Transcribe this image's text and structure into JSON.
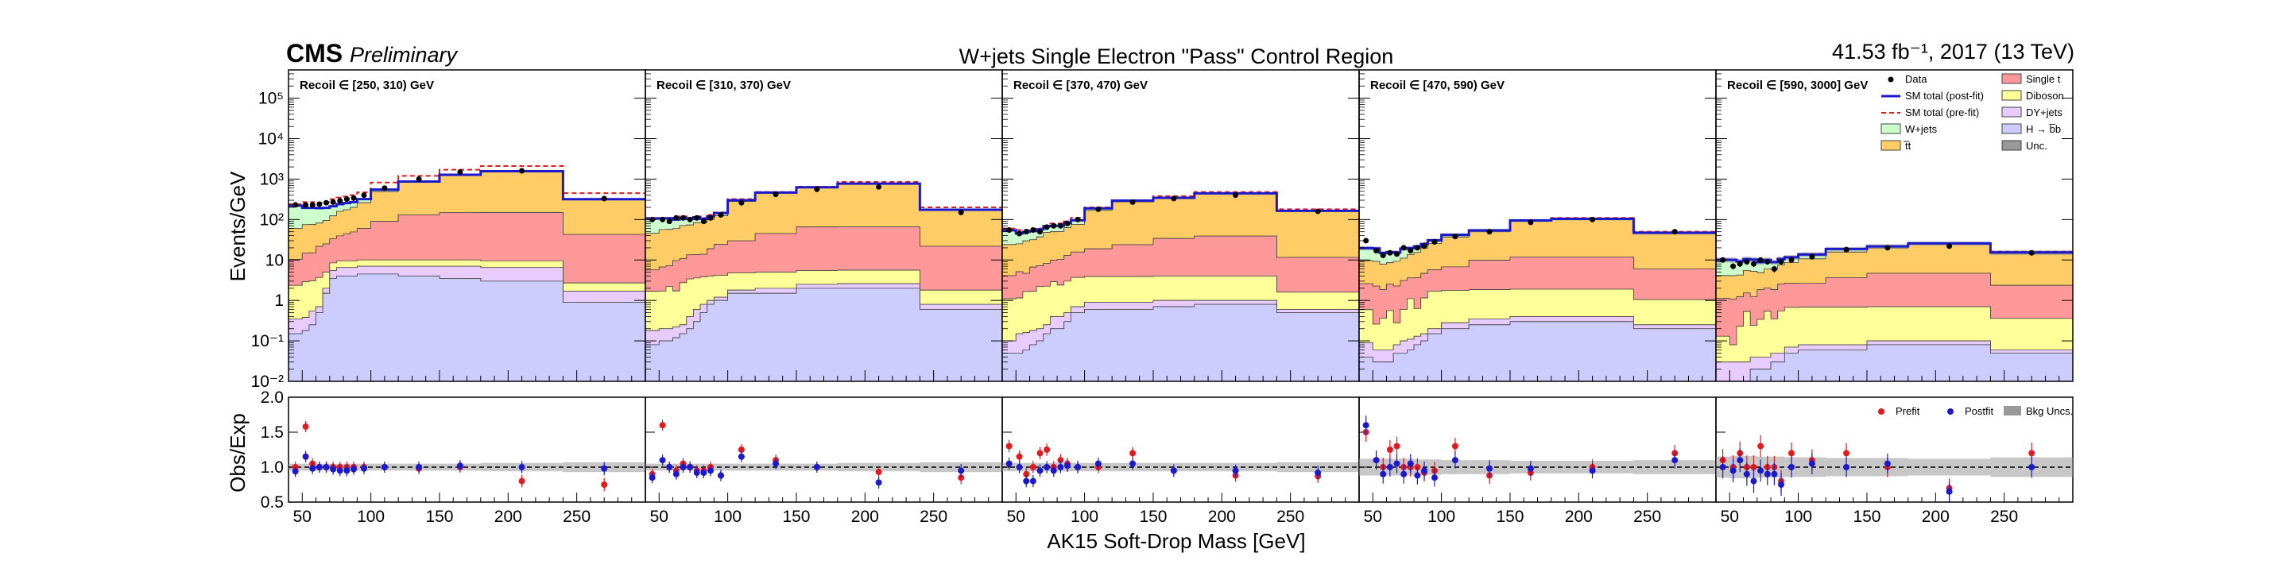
{
  "header": {
    "cms": "CMS",
    "preliminary": "Preliminary",
    "title": "W+jets Single Electron \"Pass\" Control Region",
    "lumi": "41.53 fb⁻¹, 2017 (13 TeV)"
  },
  "chart_data": {
    "type": "stacked-histogram",
    "xlabel": "AK15 Soft-Drop Mass [GeV]",
    "ylabel": "Events/GeV",
    "ratio_ylabel": "Obs/Exp",
    "xlim": [
      40,
      300
    ],
    "ylim": [
      0.01,
      500000
    ],
    "ylog": true,
    "ratio_ylim": [
      0.5,
      2.0
    ],
    "x_ticks": [
      50,
      100,
      150,
      200,
      250
    ],
    "y_tick_labels": [
      "10⁻²",
      "10⁻¹",
      "1",
      "10",
      "10²",
      "10³",
      "10⁴",
      "10⁵"
    ],
    "ratio_tick_labels": [
      "0.5",
      "1.0",
      "1.5",
      "2.0"
    ],
    "bin_edges": [
      40,
      50,
      55,
      60,
      65,
      70,
      75,
      80,
      85,
      90,
      100,
      120,
      150,
      180,
      240,
      300
    ],
    "processes": [
      "H → b̅b",
      "DY+jets",
      "Diboson",
      "Single t",
      "t̅t",
      "W+jets"
    ],
    "process_colors": [
      "#ccccff",
      "#e8ccff",
      "#ffff99",
      "#ff9999",
      "#ffcc66",
      "#ccffcc"
    ],
    "legend": {
      "data": "Data",
      "post_fit": "SM total (post-fit)",
      "pre_fit": "SM total (pre-fit)",
      "wjets": "W+jets",
      "ttbar": "t̅t",
      "singlet": "Single t",
      "diboson": "Diboson",
      "dyjets": "DY+jets",
      "hbb": "H → b̅b",
      "unc": "Unc."
    },
    "ratio_legend": {
      "prefit": "Prefit",
      "postfit": "Postfit",
      "bkg_unc": "Bkg Uncs."
    },
    "panels": [
      {
        "label": "Recoil ∈ [250, 310) GeV",
        "stack": [
          [
            0.15,
            0.18,
            0.25,
            0.5,
            1.5,
            3.5,
            4.0,
            4.0,
            4.0,
            4.5,
            4.5,
            4.0,
            3.5,
            3.0,
            0.9
          ],
          [
            0.2,
            0.2,
            0.3,
            0.2,
            0.5,
            2.0,
            2.5,
            2.5,
            2.5,
            2.5,
            2.5,
            3.0,
            3.5,
            3.5,
            0.8
          ],
          [
            2.0,
            2.5,
            2.5,
            3.0,
            3.0,
            3.0,
            3.0,
            3.0,
            3.0,
            3.0,
            3.0,
            3.0,
            3.0,
            3.0,
            1.0
          ],
          [
            8,
            12,
            12,
            18,
            20,
            25,
            30,
            35,
            40,
            50,
            80,
            120,
            140,
            140,
            40
          ],
          [
            50,
            60,
            60,
            60,
            70,
            90,
            120,
            130,
            150,
            200,
            400,
            700,
            1100,
            1400,
            270
          ],
          [
            160,
            120,
            120,
            110,
            100,
            90,
            80,
            80,
            70,
            60,
            60,
            40,
            30,
            20,
            6
          ]
        ],
        "prefit_total": [
          240,
          270,
          270,
          260,
          270,
          320,
          350,
          370,
          400,
          470,
          820,
          1200,
          1700,
          2100,
          450
        ],
        "data": [
          230,
          230,
          230,
          240,
          260,
          270,
          290,
          320,
          340,
          400,
          600,
          1000,
          1500,
          1600,
          330
        ],
        "ratio_prefit": [
          1.0,
          1.58,
          1.05,
          1.0,
          1.0,
          1.0,
          1.0,
          1.0,
          1.0,
          1.0,
          1.0,
          0.98,
          1.0,
          0.8,
          0.75
        ],
        "ratio_postfit": [
          0.94,
          1.15,
          0.98,
          1.0,
          1.0,
          0.97,
          0.95,
          0.95,
          0.97,
          0.98,
          1.0,
          1.0,
          1.02,
          1.0,
          0.98
        ],
        "unc": [
          0.05,
          0.05,
          0.05,
          0.05,
          0.05,
          0.05,
          0.05,
          0.05,
          0.05,
          0.05,
          0.05,
          0.05,
          0.05,
          0.06,
          0.07
        ]
      },
      {
        "label": "Recoil ∈ [310, 370) GeV",
        "stack": [
          [
            0.08,
            0.1,
            0.1,
            0.12,
            0.15,
            0.2,
            0.3,
            0.5,
            0.8,
            1.0,
            1.5,
            1.5,
            2.0,
            2.0,
            0.6
          ],
          [
            0.1,
            0.1,
            0.1,
            0.1,
            0.1,
            0.2,
            0.3,
            0.3,
            0.2,
            0.2,
            0.3,
            0.5,
            0.5,
            0.6,
            0.2
          ],
          [
            1.5,
            1.5,
            2.0,
            1.5,
            2.5,
            3.0,
            3.0,
            3.0,
            3.0,
            3.0,
            3.0,
            3.0,
            3.0,
            3.0,
            1.0
          ],
          [
            4,
            5,
            5,
            8,
            8,
            10,
            10,
            10,
            15,
            20,
            25,
            40,
            60,
            60,
            20
          ],
          [
            40,
            50,
            50,
            50,
            60,
            60,
            70,
            70,
            80,
            100,
            250,
            400,
            550,
            700,
            150
          ],
          [
            60,
            50,
            50,
            40,
            40,
            30,
            30,
            20,
            20,
            20,
            20,
            20,
            10,
            6,
            3
          ]
        ],
        "prefit_total": [
          110,
          110,
          110,
          110,
          120,
          110,
          120,
          110,
          130,
          150,
          320,
          480,
          650,
          850,
          200
        ],
        "data": [
          100,
          100,
          90,
          110,
          110,
          100,
          110,
          90,
          110,
          130,
          260,
          420,
          560,
          640,
          150
        ],
        "ratio_prefit": [
          0.9,
          1.6,
          1.0,
          0.95,
          1.05,
          1.0,
          0.95,
          0.95,
          1.0,
          0.88,
          1.25,
          1.1,
          1.0,
          0.93,
          0.85
        ],
        "ratio_postfit": [
          0.85,
          1.1,
          1.0,
          0.9,
          1.0,
          1.0,
          0.92,
          0.92,
          0.95,
          0.88,
          1.15,
          1.05,
          1.0,
          0.78,
          0.95
        ],
        "unc": [
          0.05,
          0.05,
          0.05,
          0.05,
          0.05,
          0.05,
          0.05,
          0.05,
          0.05,
          0.05,
          0.05,
          0.05,
          0.05,
          0.06,
          0.07
        ]
      },
      {
        "label": "Recoil ∈ [370, 470) GeV",
        "stack": [
          [
            0.05,
            0.05,
            0.06,
            0.08,
            0.1,
            0.15,
            0.2,
            0.2,
            0.3,
            0.5,
            0.6,
            0.6,
            0.7,
            0.8,
            0.5
          ],
          [
            0.05,
            0.1,
            0.1,
            0.1,
            0.1,
            0.1,
            0.2,
            0.2,
            0.2,
            0.2,
            0.3,
            0.3,
            0.3,
            0.2,
            0.1
          ],
          [
            1.0,
            1.0,
            1.5,
            1.5,
            2.0,
            2.0,
            2.5,
            2.0,
            2.5,
            3.0,
            3.0,
            3.0,
            3.0,
            3.0,
            1.0
          ],
          [
            3,
            4,
            3,
            5,
            5,
            6,
            7,
            8,
            10,
            12,
            15,
            20,
            30,
            35,
            10
          ],
          [
            20,
            20,
            25,
            25,
            30,
            40,
            40,
            40,
            50,
            60,
            150,
            250,
            300,
            400,
            150
          ],
          [
            30,
            20,
            20,
            20,
            20,
            20,
            20,
            20,
            20,
            20,
            20,
            20,
            10,
            6,
            3
          ]
        ],
        "prefit_total": [
          60,
          55,
          55,
          60,
          60,
          70,
          80,
          80,
          90,
          110,
          200,
          300,
          380,
          480,
          180
        ],
        "data": [
          55,
          45,
          50,
          55,
          50,
          65,
          70,
          70,
          80,
          100,
          180,
          270,
          330,
          400,
          160
        ],
        "ratio_prefit": [
          1.3,
          1.15,
          0.9,
          1.0,
          1.2,
          1.25,
          1.0,
          1.1,
          1.05,
          1.0,
          1.0,
          1.2,
          0.95,
          0.88,
          0.87
        ],
        "ratio_postfit": [
          1.05,
          1.0,
          0.8,
          0.8,
          0.95,
          1.0,
          0.95,
          1.0,
          1.02,
          1.0,
          1.05,
          1.05,
          0.95,
          0.95,
          0.92
        ],
        "unc": [
          0.06,
          0.06,
          0.06,
          0.06,
          0.06,
          0.06,
          0.06,
          0.06,
          0.06,
          0.06,
          0.06,
          0.06,
          0.06,
          0.06,
          0.07
        ]
      },
      {
        "label": "Recoil ∈ [470, 590) GeV",
        "stack": [
          [
            0.04,
            0.03,
            0.03,
            0.03,
            0.05,
            0.05,
            0.06,
            0.08,
            0.1,
            0.15,
            0.2,
            0.25,
            0.3,
            0.3,
            0.2
          ],
          [
            0.05,
            0.03,
            0.03,
            0.03,
            0.03,
            0.05,
            0.05,
            0.05,
            0.05,
            0.05,
            0.08,
            0.1,
            0.1,
            0.1,
            0.05
          ],
          [
            0.5,
            0.2,
            0.3,
            0.5,
            0.2,
            0.5,
            1.0,
            0.5,
            1.0,
            1.5,
            1.5,
            1.5,
            1.5,
            1.5,
            0.8
          ],
          [
            2.0,
            2.0,
            1.5,
            2.0,
            2.0,
            2.5,
            2.5,
            3.0,
            3.5,
            4.0,
            5.0,
            8.0,
            10.0,
            10.0,
            5.0
          ],
          [
            7,
            7,
            6,
            6,
            7,
            8,
            10,
            12,
            15,
            20,
            30,
            40,
            80,
            90,
            40
          ],
          [
            10,
            10,
            7,
            7,
            6,
            8,
            6,
            6,
            5,
            5,
            5,
            4,
            3,
            2,
            1
          ]
        ],
        "prefit_total": [
          20,
          19,
          15,
          16,
          16,
          19,
          20,
          22,
          26,
          31,
          42,
          55,
          95,
          110,
          50
        ],
        "data": [
          30,
          17,
          13,
          15,
          14,
          20,
          17,
          20,
          22,
          28,
          38,
          50,
          85,
          100,
          50
        ],
        "ratio_prefit": [
          1.5,
          1.1,
          1.0,
          1.25,
          1.3,
          1.0,
          1.0,
          1.0,
          0.92,
          0.95,
          1.3,
          0.88,
          0.92,
          1.0,
          1.2
        ],
        "ratio_postfit": [
          1.6,
          1.1,
          0.9,
          1.0,
          1.05,
          0.9,
          1.05,
          0.88,
          0.95,
          0.85,
          1.1,
          0.98,
          0.98,
          0.95,
          1.1
        ],
        "unc": [
          0.12,
          0.12,
          0.12,
          0.12,
          0.12,
          0.12,
          0.12,
          0.11,
          0.11,
          0.11,
          0.1,
          0.1,
          0.09,
          0.09,
          0.1
        ]
      },
      {
        "label": "Recoil ∈ [590, 3000] GeV",
        "stack": [
          [
            0.01,
            0.01,
            0.01,
            0.01,
            0.02,
            0.02,
            0.02,
            0.03,
            0.03,
            0.05,
            0.06,
            0.06,
            0.08,
            0.08,
            0.05
          ],
          [
            0.02,
            0.02,
            0.02,
            0.02,
            0.02,
            0.02,
            0.02,
            0.02,
            0.02,
            0.02,
            0.02,
            0.02,
            0.02,
            0.02,
            0.01
          ],
          [
            0.1,
            0.05,
            0.2,
            0.5,
            0.2,
            0.3,
            0.5,
            0.3,
            0.5,
            0.6,
            0.6,
            0.6,
            0.6,
            0.6,
            0.3
          ],
          [
            1.0,
            1.0,
            1.0,
            1.0,
            1.0,
            1.5,
            1.5,
            1.5,
            2.0,
            2.0,
            2.0,
            3.0,
            4.0,
            4.0,
            2.0
          ],
          [
            3,
            3,
            3,
            4,
            4,
            3,
            4,
            4,
            5,
            6,
            8,
            12,
            15,
            20,
            12
          ],
          [
            6,
            6,
            5,
            5,
            5,
            4,
            4,
            3,
            3,
            3,
            3,
            3,
            2,
            1,
            1
          ]
        ],
        "prefit_total": [
          10,
          10,
          9,
          10,
          10,
          9,
          10,
          9,
          11,
          12,
          14,
          19,
          22,
          26,
          16
        ],
        "data": [
          10,
          7,
          8,
          9,
          8,
          10,
          9,
          6,
          9,
          10,
          12,
          18,
          20,
          22,
          15
        ],
        "ratio_prefit": [
          1.1,
          1.0,
          1.2,
          1.0,
          1.0,
          1.3,
          1.0,
          1.0,
          0.8,
          1.2,
          1.1,
          1.2,
          1.0,
          0.7,
          1.2
        ],
        "ratio_postfit": [
          1.0,
          0.95,
          1.1,
          0.9,
          0.8,
          0.95,
          0.9,
          0.9,
          0.75,
          1.0,
          1.05,
          1.0,
          1.05,
          0.65,
          1.0
        ],
        "unc": [
          0.15,
          0.16,
          0.16,
          0.16,
          0.16,
          0.15,
          0.15,
          0.15,
          0.15,
          0.14,
          0.14,
          0.13,
          0.13,
          0.12,
          0.14
        ]
      }
    ]
  }
}
